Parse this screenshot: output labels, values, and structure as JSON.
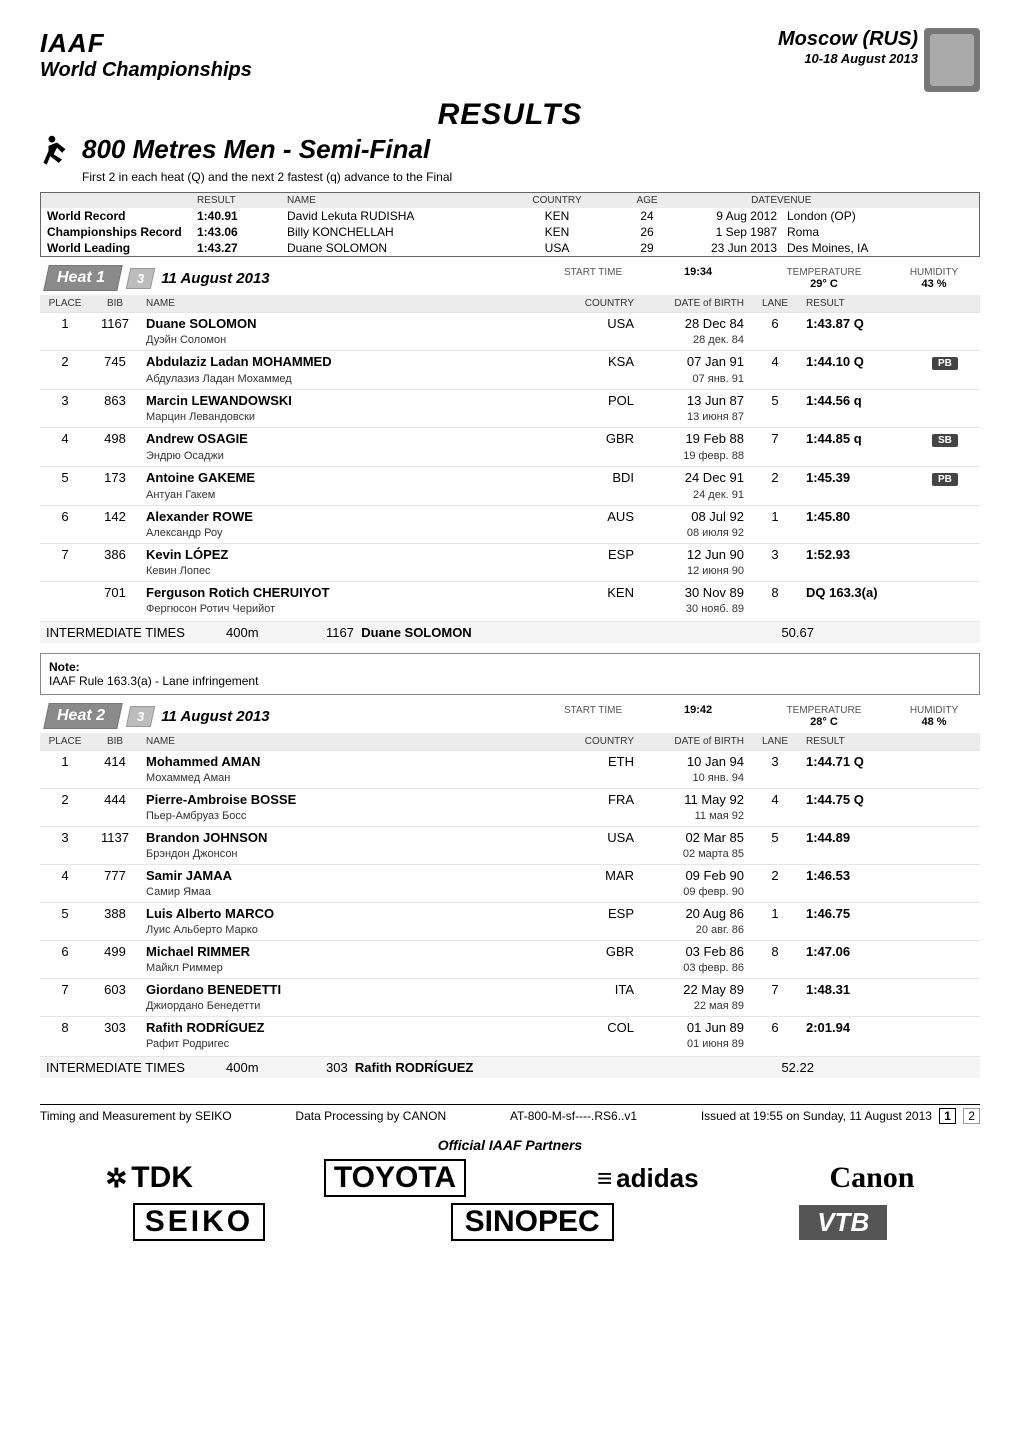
{
  "header": {
    "org": "IAAF",
    "champ": "World Championships",
    "city": "Moscow (RUS)",
    "dates": "10-18 August 2013"
  },
  "results_title": "RESULTS",
  "event_title": "800 Metres Men - Semi-Final",
  "subtitle": "First 2 in each heat (Q) and the next 2 fastest (q) advance to the Final",
  "records": {
    "cols": [
      "",
      "RESULT",
      "NAME",
      "COUNTRY",
      "AGE",
      "DATE",
      "VENUE"
    ],
    "rows": [
      {
        "label": "World Record",
        "result": "1:40.91",
        "name": "David Lekuta RUDISHA",
        "country": "KEN",
        "age": "24",
        "date": "9 Aug 2012",
        "venue": "London (OP)"
      },
      {
        "label": "Championships Record",
        "result": "1:43.06",
        "name": "Billy KONCHELLAH",
        "country": "KEN",
        "age": "26",
        "date": "1 Sep 1987",
        "venue": "Roma"
      },
      {
        "label": "World Leading",
        "result": "1:43.27",
        "name": "Duane SOLOMON",
        "country": "USA",
        "age": "29",
        "date": "23 Jun 2013",
        "venue": "Des Moines, IA"
      }
    ]
  },
  "heats": [
    {
      "title": "Heat 1",
      "day": "3",
      "date": "11 August 2013",
      "start_label": "START TIME",
      "start": "19:34",
      "temp_label": "TEMPERATURE",
      "temp": "29° C",
      "hum_label": "HUMIDITY",
      "hum": "43 %",
      "cols": [
        "PLACE",
        "BIB",
        "NAME",
        "COUNTRY",
        "DATE of BIRTH",
        "LANE",
        "RESULT",
        ""
      ],
      "rows": [
        {
          "place": "1",
          "bib": "1167",
          "name": "Duane SOLOMON",
          "alt": "Дуэйн Соломон",
          "country": "USA",
          "dob": "28 Dec 84",
          "dob_alt": "28 дек. 84",
          "lane": "6",
          "result": "1:43.87 Q",
          "badge": ""
        },
        {
          "place": "2",
          "bib": "745",
          "name": "Abdulaziz Ladan MOHAMMED",
          "alt": "Абдулазиз Ладан Мохаммед",
          "country": "KSA",
          "dob": "07 Jan 91",
          "dob_alt": "07 янв. 91",
          "lane": "4",
          "result": "1:44.10 Q",
          "badge": "PB"
        },
        {
          "place": "3",
          "bib": "863",
          "name": "Marcin LEWANDOWSKI",
          "alt": "Марцин Левандовски",
          "country": "POL",
          "dob": "13 Jun 87",
          "dob_alt": "13 июня 87",
          "lane": "5",
          "result": "1:44.56 q",
          "badge": ""
        },
        {
          "place": "4",
          "bib": "498",
          "name": "Andrew OSAGIE",
          "alt": "Эндрю Осаджи",
          "country": "GBR",
          "dob": "19 Feb 88",
          "dob_alt": "19 февр. 88",
          "lane": "7",
          "result": "1:44.85 q",
          "badge": "SB"
        },
        {
          "place": "5",
          "bib": "173",
          "name": "Antoine GAKEME",
          "alt": "Антуан Гакем",
          "country": "BDI",
          "dob": "24 Dec 91",
          "dob_alt": "24 дек. 91",
          "lane": "2",
          "result": "1:45.39",
          "badge": "PB"
        },
        {
          "place": "6",
          "bib": "142",
          "name": "Alexander ROWE",
          "alt": "Александр Роу",
          "country": "AUS",
          "dob": "08 Jul 92",
          "dob_alt": "08 июля 92",
          "lane": "1",
          "result": "1:45.80",
          "badge": ""
        },
        {
          "place": "7",
          "bib": "386",
          "name": "Kevin LÓPEZ",
          "alt": "Кевин Лопес",
          "country": "ESP",
          "dob": "12 Jun 90",
          "dob_alt": "12 июня 90",
          "lane": "3",
          "result": "1:52.93",
          "badge": ""
        },
        {
          "place": "",
          "bib": "701",
          "name": "Ferguson Rotich CHERUIYOT",
          "alt": "Фергюсон Ротич Черийот",
          "country": "KEN",
          "dob": "30 Nov 89",
          "dob_alt": "30 нояб. 89",
          "lane": "8",
          "result": "DQ 163.3(a)",
          "badge": ""
        }
      ],
      "inter_label": "INTERMEDIATE TIMES",
      "inter_dist": "400m",
      "inter_bib": "1167",
      "inter_name": "Duane SOLOMON",
      "inter_time": "50.67"
    },
    {
      "title": "Heat 2",
      "day": "3",
      "date": "11 August 2013",
      "start_label": "START TIME",
      "start": "19:42",
      "temp_label": "TEMPERATURE",
      "temp": "28° C",
      "hum_label": "HUMIDITY",
      "hum": "48 %",
      "cols": [
        "PLACE",
        "BIB",
        "NAME",
        "COUNTRY",
        "DATE of BIRTH",
        "LANE",
        "RESULT",
        ""
      ],
      "rows": [
        {
          "place": "1",
          "bib": "414",
          "name": "Mohammed AMAN",
          "alt": "Мохаммед Аман",
          "country": "ETH",
          "dob": "10 Jan 94",
          "dob_alt": "10 янв. 94",
          "lane": "3",
          "result": "1:44.71 Q",
          "badge": ""
        },
        {
          "place": "2",
          "bib": "444",
          "name": "Pierre-Ambroise BOSSE",
          "alt": "Пьер-Амбруаз Босс",
          "country": "FRA",
          "dob": "11 May 92",
          "dob_alt": "11 мая 92",
          "lane": "4",
          "result": "1:44.75 Q",
          "badge": ""
        },
        {
          "place": "3",
          "bib": "1137",
          "name": "Brandon JOHNSON",
          "alt": "Брэндон Джонсон",
          "country": "USA",
          "dob": "02 Mar 85",
          "dob_alt": "02 марта 85",
          "lane": "5",
          "result": "1:44.89",
          "badge": ""
        },
        {
          "place": "4",
          "bib": "777",
          "name": "Samir JAMAA",
          "alt": "Самир Ямаа",
          "country": "MAR",
          "dob": "09 Feb 90",
          "dob_alt": "09 февр. 90",
          "lane": "2",
          "result": "1:46.53",
          "badge": ""
        },
        {
          "place": "5",
          "bib": "388",
          "name": "Luis Alberto MARCO",
          "alt": "Луис Альберто Марко",
          "country": "ESP",
          "dob": "20 Aug 86",
          "dob_alt": "20 авг. 86",
          "lane": "1",
          "result": "1:46.75",
          "badge": ""
        },
        {
          "place": "6",
          "bib": "499",
          "name": "Michael RIMMER",
          "alt": "Майкл Риммер",
          "country": "GBR",
          "dob": "03 Feb 86",
          "dob_alt": "03 февр. 86",
          "lane": "8",
          "result": "1:47.06",
          "badge": ""
        },
        {
          "place": "7",
          "bib": "603",
          "name": "Giordano BENEDETTI",
          "alt": "Джиордано Бенедетти",
          "country": "ITA",
          "dob": "22 May 89",
          "dob_alt": "22 мая 89",
          "lane": "7",
          "result": "1:48.31",
          "badge": ""
        },
        {
          "place": "8",
          "bib": "303",
          "name": "Rafith RODRÍGUEZ",
          "alt": "Рафит Родригес",
          "country": "COL",
          "dob": "01 Jun 89",
          "dob_alt": "01 июня 89",
          "lane": "6",
          "result": "2:01.94",
          "badge": ""
        }
      ],
      "inter_label": "INTERMEDIATE TIMES",
      "inter_dist": "400m",
      "inter_bib": "303",
      "inter_name": "Rafith RODRÍGUEZ",
      "inter_time": "52.22"
    }
  ],
  "note": {
    "title": "Note:",
    "body": "IAAF Rule 163.3(a) - Lane infringement"
  },
  "footer": {
    "left": "Timing and Measurement by SEIKO",
    "mid": "Data Processing by CANON",
    "code": "AT-800-M-sf----.RS6..v1",
    "right": "Issued at 19:55 on Sunday, 11 August 2013",
    "page": "1",
    "pages": "2"
  },
  "partners_title": "Official IAAF Partners",
  "partners": [
    "TDK",
    "TOYOTA",
    "adidas",
    "Canon",
    "SEIKO",
    "SINOPEC",
    "VTB"
  ]
}
